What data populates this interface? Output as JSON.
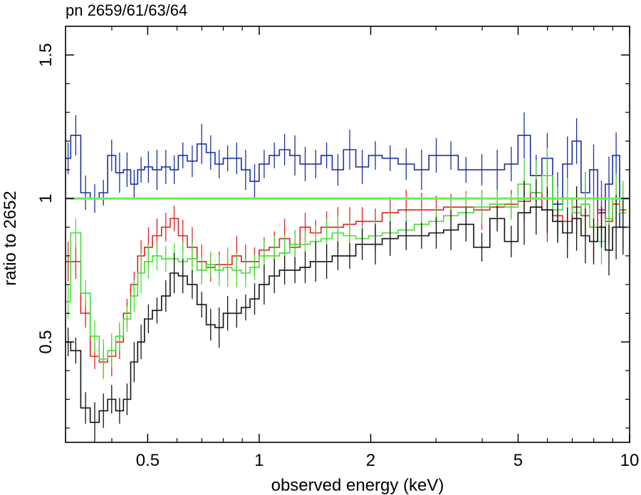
{
  "chart_data": {
    "type": "line",
    "title": "pn 2659/61/63/64",
    "xlabel": "observed energy (keV)",
    "ylabel": "ratio to 2652",
    "xscale": "log",
    "xlim": [
      0.3,
      10
    ],
    "ylim": [
      0.15,
      1.6
    ],
    "xticks": [
      {
        "value": 0.5,
        "label": "0.5"
      },
      {
        "value": 1,
        "label": "1"
      },
      {
        "value": 2,
        "label": "2"
      },
      {
        "value": 5,
        "label": "5"
      },
      {
        "value": 10,
        "label": "10"
      }
    ],
    "yticks": [
      {
        "value": 0.5,
        "label": "0.5"
      },
      {
        "value": 1,
        "label": "1"
      },
      {
        "value": 1.5,
        "label": "1.5"
      }
    ],
    "reference_line": {
      "y": 1.0,
      "color": "#66ee55"
    },
    "series": [
      {
        "name": "blue",
        "color": "#1a2fa0",
        "x": [
          0.3,
          0.32,
          0.34,
          0.36,
          0.38,
          0.4,
          0.42,
          0.44,
          0.46,
          0.48,
          0.5,
          0.53,
          0.56,
          0.59,
          0.62,
          0.66,
          0.7,
          0.74,
          0.78,
          0.82,
          0.87,
          0.92,
          0.97,
          1.03,
          1.1,
          1.17,
          1.25,
          1.33,
          1.42,
          1.52,
          1.63,
          1.75,
          1.9,
          2.05,
          2.25,
          2.5,
          2.75,
          3.0,
          3.3,
          3.6,
          4.0,
          4.4,
          4.8,
          5.2,
          5.6,
          6.0,
          6.4,
          6.8,
          7.2,
          7.6,
          8.0,
          8.4,
          8.8,
          9.2,
          9.6
        ],
        "y": [
          1.14,
          1.22,
          1.02,
          1.0,
          1.02,
          1.15,
          1.09,
          1.1,
          1.05,
          1.1,
          1.11,
          1.1,
          1.11,
          1.1,
          1.15,
          1.13,
          1.19,
          1.16,
          1.12,
          1.14,
          1.14,
          1.1,
          1.06,
          1.12,
          1.15,
          1.17,
          1.15,
          1.12,
          1.12,
          1.15,
          1.1,
          1.17,
          1.11,
          1.15,
          1.14,
          1.12,
          1.1,
          1.15,
          1.15,
          1.1,
          1.1,
          1.1,
          1.12,
          1.22,
          1.08,
          1.14,
          0.98,
          1.12,
          1.2,
          1.02,
          1.1,
          0.95,
          1.05,
          1.15,
          0.9
        ]
      },
      {
        "name": "red",
        "color": "#dd2222",
        "x": [
          0.3,
          0.32,
          0.34,
          0.36,
          0.38,
          0.4,
          0.42,
          0.44,
          0.46,
          0.48,
          0.5,
          0.53,
          0.56,
          0.59,
          0.62,
          0.66,
          0.7,
          0.74,
          0.78,
          0.82,
          0.87,
          0.92,
          0.97,
          1.03,
          1.1,
          1.17,
          1.25,
          1.33,
          1.42,
          1.52,
          1.63,
          1.75,
          1.9,
          2.05,
          2.25,
          2.5,
          2.75,
          3.0,
          3.3,
          3.6,
          4.0,
          4.4,
          4.8,
          5.2,
          5.6,
          6.0,
          6.4,
          6.8,
          7.2,
          7.6,
          8.0,
          8.4,
          8.8,
          9.2,
          9.6
        ],
        "y": [
          0.78,
          0.78,
          0.6,
          0.45,
          0.43,
          0.45,
          0.5,
          0.6,
          0.7,
          0.8,
          0.83,
          0.87,
          0.9,
          0.93,
          0.87,
          0.83,
          0.78,
          0.76,
          0.77,
          0.77,
          0.8,
          0.78,
          0.78,
          0.82,
          0.83,
          0.86,
          0.83,
          0.9,
          0.88,
          0.9,
          0.9,
          0.91,
          0.92,
          0.92,
          0.95,
          0.96,
          0.96,
          0.96,
          0.97,
          0.97,
          0.96,
          0.97,
          0.98,
          0.99,
          1.02,
          0.96,
          0.94,
          0.92,
          0.97,
          0.94,
          0.9,
          0.96,
          0.92,
          0.98,
          0.96
        ]
      },
      {
        "name": "green",
        "color": "#44dd33",
        "x": [
          0.3,
          0.32,
          0.34,
          0.36,
          0.38,
          0.4,
          0.42,
          0.44,
          0.46,
          0.48,
          0.5,
          0.53,
          0.56,
          0.59,
          0.62,
          0.66,
          0.7,
          0.74,
          0.78,
          0.82,
          0.87,
          0.92,
          0.97,
          1.03,
          1.1,
          1.17,
          1.25,
          1.33,
          1.42,
          1.52,
          1.63,
          1.75,
          1.9,
          2.05,
          2.25,
          2.5,
          2.75,
          3.0,
          3.3,
          3.6,
          4.0,
          4.4,
          4.8,
          5.2,
          5.6,
          6.0,
          6.4,
          6.8,
          7.2,
          7.6,
          8.0,
          8.4,
          8.8,
          9.2,
          9.6
        ],
        "y": [
          0.64,
          0.88,
          0.67,
          0.52,
          0.44,
          0.47,
          0.52,
          0.58,
          0.66,
          0.74,
          0.78,
          0.8,
          0.79,
          0.79,
          0.78,
          0.79,
          0.75,
          0.77,
          0.75,
          0.76,
          0.75,
          0.74,
          0.76,
          0.8,
          0.8,
          0.81,
          0.84,
          0.84,
          0.85,
          0.86,
          0.88,
          0.87,
          0.86,
          0.87,
          0.88,
          0.89,
          0.91,
          0.92,
          0.94,
          0.95,
          0.97,
          0.98,
          0.97,
          1.05,
          1.02,
          1.08,
          0.96,
          1.0,
          0.95,
          0.98,
          0.9,
          0.85,
          0.93,
          1.0,
          0.95
        ]
      },
      {
        "name": "black",
        "color": "#111111",
        "x": [
          0.3,
          0.32,
          0.34,
          0.36,
          0.38,
          0.4,
          0.42,
          0.44,
          0.46,
          0.48,
          0.5,
          0.53,
          0.56,
          0.59,
          0.62,
          0.66,
          0.7,
          0.74,
          0.78,
          0.82,
          0.87,
          0.92,
          0.97,
          1.03,
          1.1,
          1.17,
          1.25,
          1.33,
          1.42,
          1.52,
          1.63,
          1.75,
          1.9,
          2.05,
          2.25,
          2.5,
          2.75,
          3.0,
          3.3,
          3.6,
          4.0,
          4.4,
          4.8,
          5.2,
          5.6,
          6.0,
          6.4,
          6.8,
          7.2,
          7.6,
          8.0,
          8.4,
          8.8,
          9.2,
          9.6
        ],
        "y": [
          0.5,
          0.47,
          0.27,
          0.22,
          0.26,
          0.3,
          0.26,
          0.3,
          0.43,
          0.5,
          0.58,
          0.61,
          0.66,
          0.74,
          0.73,
          0.7,
          0.63,
          0.56,
          0.55,
          0.6,
          0.6,
          0.62,
          0.65,
          0.7,
          0.73,
          0.75,
          0.75,
          0.76,
          0.78,
          0.78,
          0.8,
          0.8,
          0.84,
          0.84,
          0.86,
          0.87,
          0.87,
          0.88,
          0.89,
          0.91,
          0.83,
          0.93,
          0.85,
          0.95,
          0.97,
          0.96,
          0.92,
          0.88,
          0.93,
          0.87,
          0.85,
          0.9,
          0.82,
          0.9,
          0.9
        ]
      }
    ]
  }
}
